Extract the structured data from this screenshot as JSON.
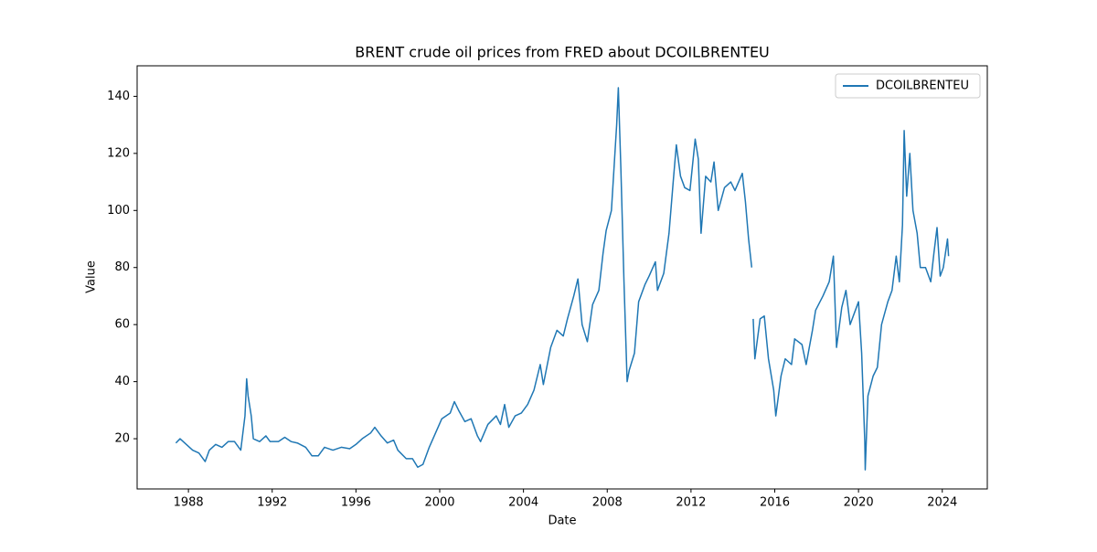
{
  "chart_data": {
    "type": "line",
    "title": "BRENT crude oil prices from FRED about DCOILBRENTEU",
    "x_label": "Date",
    "y_label": "Value",
    "x": [
      1987.4,
      1987.6,
      1987.9,
      1988.2,
      1988.5,
      1988.8,
      1989.0,
      1989.3,
      1989.6,
      1989.9,
      1990.2,
      1990.5,
      1990.7,
      1990.78,
      1990.85,
      1991.0,
      1991.1,
      1991.4,
      1991.7,
      1991.9,
      1992.3,
      1992.6,
      1992.9,
      1993.2,
      1993.6,
      1993.9,
      1994.2,
      1994.5,
      1994.9,
      1995.3,
      1995.7,
      1996.0,
      1996.3,
      1996.7,
      1996.9,
      1997.2,
      1997.5,
      1997.8,
      1998.0,
      1998.4,
      1998.7,
      1998.95,
      1999.2,
      1999.5,
      1999.8,
      2000.1,
      2000.5,
      2000.7,
      2000.9,
      2001.2,
      2001.5,
      2001.8,
      2001.95,
      2002.3,
      2002.7,
      2002.9,
      2003.1,
      2003.3,
      2003.6,
      2003.9,
      2004.2,
      2004.5,
      2004.8,
      2004.95,
      2005.3,
      2005.6,
      2005.9,
      2006.1,
      2006.4,
      2006.6,
      2006.8,
      2007.05,
      2007.3,
      2007.6,
      2007.8,
      2007.95,
      2008.2,
      2008.45,
      2008.53,
      2008.65,
      2008.8,
      2008.95,
      2009.05,
      2009.3,
      2009.5,
      2009.8,
      2010.0,
      2010.3,
      2010.4,
      2010.7,
      2010.95,
      2011.15,
      2011.3,
      2011.5,
      2011.7,
      2011.95,
      2012.2,
      2012.35,
      2012.48,
      2012.7,
      2012.95,
      2013.1,
      2013.3,
      2013.6,
      2013.9,
      2014.1,
      2014.45,
      2014.6,
      2014.75,
      2014.9,
      2014.94,
      2014.97,
      2015.05,
      2015.3,
      2015.5,
      2015.7,
      2015.95,
      2016.05,
      2016.3,
      2016.5,
      2016.8,
      2016.95,
      2017.3,
      2017.5,
      2017.8,
      2017.95,
      2018.3,
      2018.6,
      2018.8,
      2018.95,
      2019.2,
      2019.4,
      2019.6,
      2019.9,
      2020.0,
      2020.15,
      2020.3,
      2020.32,
      2020.45,
      2020.7,
      2020.9,
      2021.1,
      2021.4,
      2021.6,
      2021.8,
      2021.95,
      2022.1,
      2022.18,
      2022.3,
      2022.45,
      2022.6,
      2022.8,
      2022.95,
      2023.2,
      2023.45,
      2023.6,
      2023.75,
      2023.9,
      2024.05,
      2024.25,
      2024.3
    ],
    "series": [
      {
        "name": "DCOILBRENTEU",
        "color": "#1f77b4",
        "values": [
          18.5,
          20,
          18,
          16,
          15,
          12,
          16,
          18,
          17,
          19,
          19,
          16,
          28,
          41,
          35,
          28,
          20,
          19,
          21,
          19,
          19,
          20.5,
          19,
          18.5,
          17,
          14,
          14,
          17,
          16,
          17,
          16.5,
          18,
          20,
          22,
          24,
          21,
          18.5,
          19.5,
          16,
          13,
          13,
          10,
          11,
          17,
          22,
          27,
          29,
          33,
          30,
          26,
          27,
          21,
          19,
          25,
          28,
          25,
          32,
          24,
          28,
          29,
          32,
          37,
          46,
          39,
          52,
          58,
          56,
          62,
          70,
          76,
          60,
          54,
          67,
          72,
          85,
          93,
          100,
          130,
          143,
          115,
          75,
          40,
          44,
          50,
          68,
          74,
          77,
          82,
          72,
          78,
          92,
          110,
          123,
          112,
          108,
          107,
          125,
          118,
          92,
          112,
          110,
          117,
          100,
          108,
          110,
          107,
          113,
          103,
          90,
          80,
          null,
          62,
          48,
          62,
          63,
          48,
          37,
          28,
          42,
          48,
          46,
          55,
          53,
          46,
          58,
          65,
          70,
          75,
          84,
          52,
          66,
          72,
          60,
          66,
          68,
          50,
          19,
          9.1,
          35,
          42,
          45,
          60,
          68,
          72,
          84,
          75,
          95,
          128,
          105,
          120,
          100,
          92,
          80,
          80,
          75,
          85,
          94,
          77,
          80,
          90,
          84
        ]
      }
    ],
    "xlim": [
      1985.55,
      2026.15
    ],
    "ylim": [
      2.4,
      150.7
    ],
    "xticks": [
      1988,
      1992,
      1996,
      2000,
      2004,
      2008,
      2012,
      2016,
      2020,
      2024
    ],
    "yticks": [
      20,
      40,
      60,
      80,
      100,
      120,
      140
    ],
    "legend": "upper right"
  }
}
